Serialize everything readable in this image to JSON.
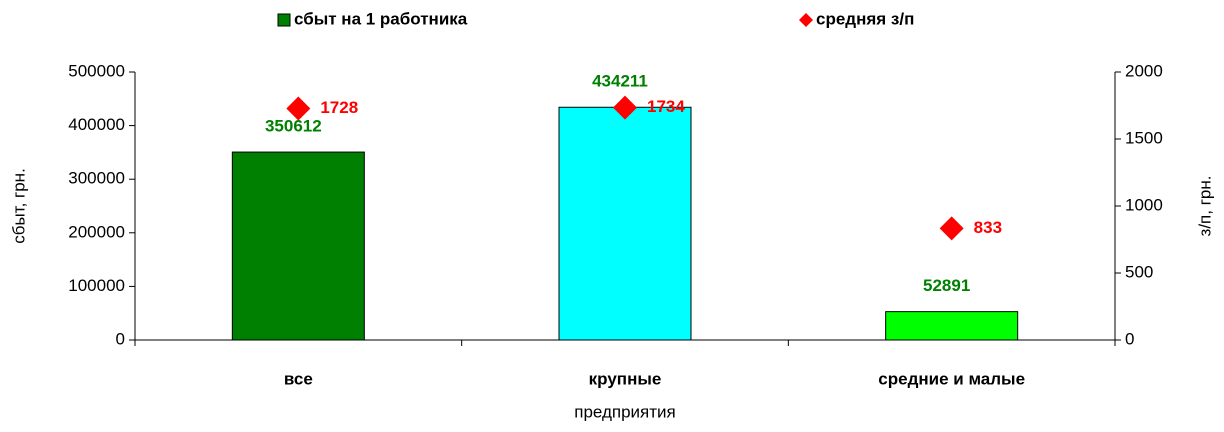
{
  "chart_data": {
    "type": "bar",
    "categories": [
      "все",
      "крупные",
      "средние и малые"
    ],
    "x_label": "предприятия",
    "y_label": "сбыт, грн.",
    "y2_label": "з/п, грн.",
    "ylim": [
      0,
      500000
    ],
    "yticks": [
      0,
      100000,
      200000,
      300000,
      400000,
      500000
    ],
    "y2lim": [
      0,
      2000
    ],
    "y2ticks": [
      0,
      500,
      1000,
      1500,
      2000
    ],
    "legend": "top",
    "series": [
      {
        "name": "сбыт на 1 работника",
        "type": "bar",
        "color": "#008000",
        "colors": [
          "#008000",
          "#00ffff",
          "#00ff00"
        ],
        "values": [
          350612,
          434211,
          52891
        ]
      },
      {
        "name": "средняя з/п",
        "type": "scatter",
        "axis": "y2",
        "color": "#ff0000",
        "values": [
          1728,
          1734,
          833
        ]
      }
    ]
  }
}
